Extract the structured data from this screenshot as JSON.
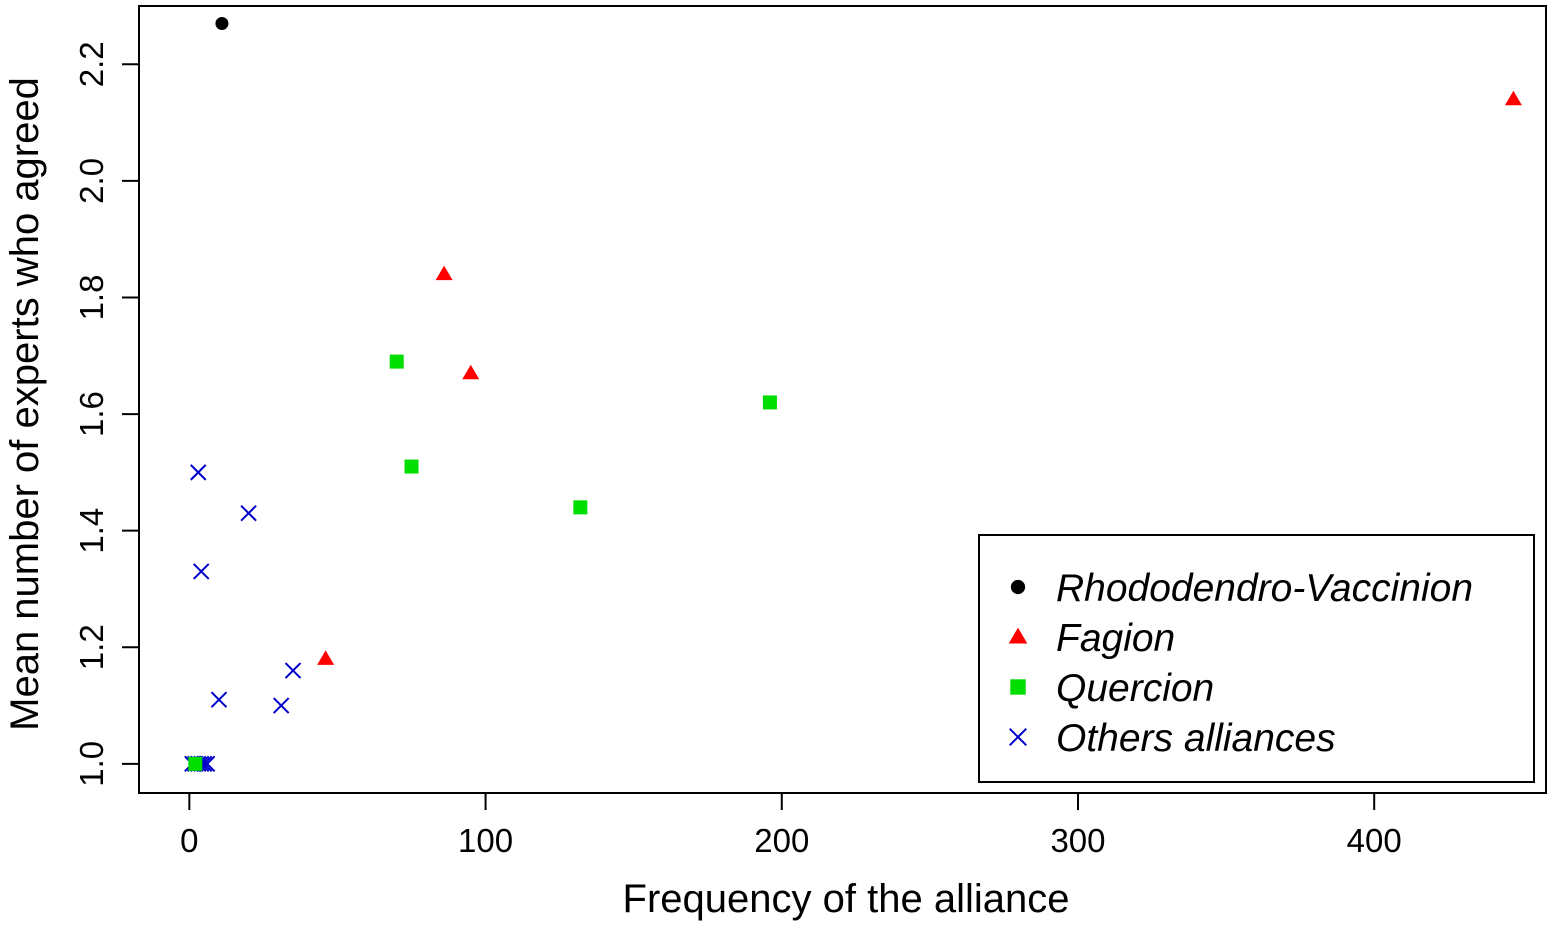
{
  "chart_data": {
    "type": "scatter",
    "title": "",
    "xlabel": "Frequency of the alliance",
    "ylabel": "Mean number of experts who agreed",
    "xlim": [
      -17,
      458
    ],
    "ylim": [
      0.95,
      2.3
    ],
    "x_ticks": [
      0,
      100,
      200,
      300,
      400
    ],
    "y_ticks": [
      1.0,
      1.2,
      1.4,
      1.6,
      1.8,
      2.0,
      2.2
    ],
    "x_tick_labels": [
      "0",
      "100",
      "200",
      "300",
      "400"
    ],
    "y_tick_labels": [
      "1.0",
      "1.2",
      "1.4",
      "1.6",
      "1.8",
      "2.0",
      "2.2"
    ],
    "grid": false,
    "legend_position": "bottom-right",
    "series": [
      {
        "name": "Rhododendro-Vaccinion",
        "marker": "circle",
        "color": "#000000",
        "points": [
          {
            "x": 11,
            "y": 2.27
          }
        ]
      },
      {
        "name": "Fagion",
        "marker": "triangle",
        "color": "#ff0000",
        "points": [
          {
            "x": 46,
            "y": 1.18
          },
          {
            "x": 86,
            "y": 1.84
          },
          {
            "x": 95,
            "y": 1.67
          },
          {
            "x": 447,
            "y": 2.14
          }
        ]
      },
      {
        "name": "Quercion",
        "marker": "square",
        "color": "#00dd00",
        "points": [
          {
            "x": 2,
            "y": 1.0
          },
          {
            "x": 70,
            "y": 1.69
          },
          {
            "x": 75,
            "y": 1.51
          },
          {
            "x": 132,
            "y": 1.44
          },
          {
            "x": 196,
            "y": 1.62
          }
        ]
      },
      {
        "name": "Others alliances",
        "marker": "cross",
        "color": "#0000cc",
        "points": [
          {
            "x": 1,
            "y": 1.0
          },
          {
            "x": 2,
            "y": 1.0
          },
          {
            "x": 3,
            "y": 1.0
          },
          {
            "x": 4,
            "y": 1.0
          },
          {
            "x": 5,
            "y": 1.0
          },
          {
            "x": 6,
            "y": 1.0
          },
          {
            "x": 3,
            "y": 1.5
          },
          {
            "x": 4,
            "y": 1.33
          },
          {
            "x": 10,
            "y": 1.11
          },
          {
            "x": 20,
            "y": 1.43
          },
          {
            "x": 31,
            "y": 1.1
          },
          {
            "x": 35,
            "y": 1.16
          }
        ]
      }
    ]
  }
}
